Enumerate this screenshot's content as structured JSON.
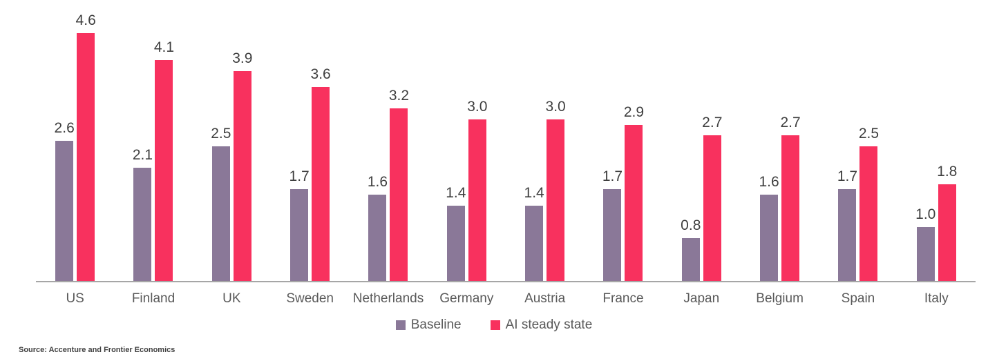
{
  "chart_data": {
    "type": "bar",
    "categories": [
      "US",
      "Finland",
      "UK",
      "Sweden",
      "Netherlands",
      "Germany",
      "Austria",
      "France",
      "Japan",
      "Belgium",
      "Spain",
      "Italy"
    ],
    "series": [
      {
        "name": "Baseline",
        "color": "#8A7898",
        "values": [
          2.6,
          2.1,
          2.5,
          1.7,
          1.6,
          1.4,
          1.4,
          1.7,
          0.8,
          1.6,
          1.7,
          1.0
        ]
      },
      {
        "name": "AI steady state",
        "color": "#F8315E",
        "values": [
          4.6,
          4.1,
          3.9,
          3.6,
          3.2,
          3.0,
          3.0,
          2.9,
          2.7,
          2.7,
          2.5,
          1.8
        ]
      }
    ],
    "ylim": [
      0,
      4.6
    ],
    "value_labels": true,
    "grid": false,
    "legend_position": "bottom",
    "axis_line_color": "#A6A6A6",
    "value_label_color": "#3F3F3F",
    "category_label_color": "#595959"
  },
  "source": "Source: Accenture and Frontier Economics"
}
